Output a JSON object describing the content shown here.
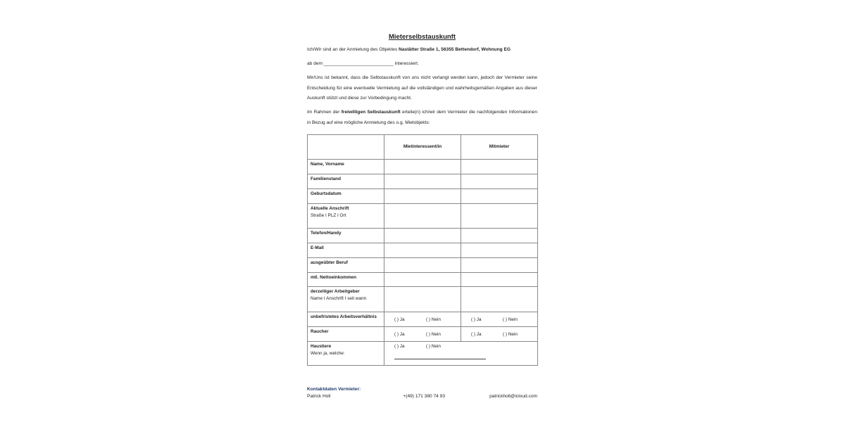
{
  "title": "Mieterselbstauskunft",
  "intro_prefix": "Ich/Wir sind an der Anmietung des Objektes ",
  "intro_object": "Nastätter Straße 1, 56355 Bettendorf, Wohnung EG",
  "ab_dem_prefix": "ab dem ",
  "ab_dem_blank": "___________________________",
  "ab_dem_suffix": " interessiert.",
  "paragraph1": "Mir/Uns ist bekannt, dass die Selbstauskunft von uns nicht verlangt werden kann, jedoch der Vermieter seine Entscheidung für eine eventuelle Vermietung auf die vollständigen und wahrheitsgemäßen Angaben aus dieser Auskunft stützt und diese zur Vorbedingung macht.",
  "paragraph2_prefix": "Im Rahmen der ",
  "paragraph2_bold": "freiwilligen Selbstauskunft",
  "paragraph2_suffix": " erteile(n) ich/wir dem Vermieter die nachfolgenden Informationen in Bezug auf eine mögliche Anmietung des o.g. Mietobjekts:",
  "table": {
    "headers": [
      "",
      "Mietinteressent/in",
      "Mitmieter"
    ],
    "rows": [
      {
        "label": "Name, Vorname",
        "sub": ""
      },
      {
        "label": "Familienstand",
        "sub": ""
      },
      {
        "label": "Geburtsdatum",
        "sub": ""
      },
      {
        "label": "Aktuelle Anschrift",
        "sub": "Straße I PLZ I Ort"
      },
      {
        "label": "Telefon/Handy",
        "sub": ""
      },
      {
        "label": "E-Mail",
        "sub": ""
      },
      {
        "label": "ausgeübter Beruf",
        "sub": ""
      },
      {
        "label": "mtl. Nettoeinkommen",
        "sub": ""
      },
      {
        "label": "derzeitiger Arbeitgeber",
        "sub": "Name I Anschrift I seit wann"
      },
      {
        "label": "unbefristetes Arbeitsverhältnis",
        "sub": ""
      },
      {
        "label": "Raucher",
        "sub": ""
      },
      {
        "label": "Haustiere",
        "sub": "Wenn ja, welche:"
      }
    ],
    "opt_ja": "(  ) Ja",
    "opt_nein": "(  ) Nein"
  },
  "contact": {
    "heading": "Kontaktdaten Vermieter:",
    "name": "Patrick Holl",
    "phone": "+(49) 171 380 74 93",
    "email": "patrickholl@icloud.com"
  }
}
